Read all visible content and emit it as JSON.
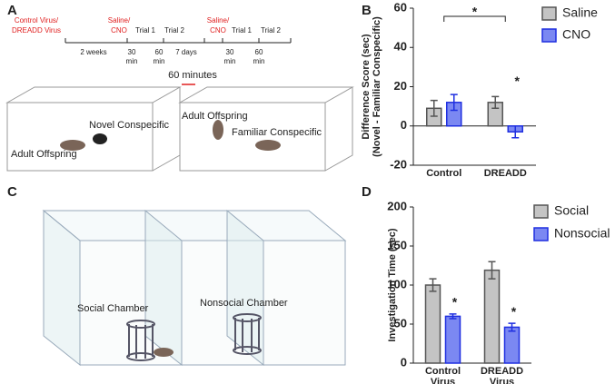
{
  "panel_a": {
    "label": "A",
    "group": [
      "Control Virus/",
      "DREADD Virus"
    ],
    "treatment_1": [
      "Saline/",
      "CNO"
    ],
    "treatment_2": [
      "Saline/",
      "CNO"
    ],
    "timeline_top": [
      "Trial 1",
      "Trial 2",
      "Trial 1",
      "Trial 2"
    ],
    "timeline_bottom": [
      "2 weeks",
      "30",
      "min",
      "60",
      "min",
      "7 days",
      "30",
      "min",
      "60",
      "min"
    ],
    "interval": "60 minutes",
    "scene_1": [
      "Novel Conspecific",
      "Adult Offspring"
    ],
    "scene_2": [
      "Adult Offspring",
      "Familiar Conspecific"
    ]
  },
  "panel_c": {
    "label": "C",
    "chambers": [
      "Social Chamber",
      "Nonsocial Chamber"
    ]
  },
  "chart_data": [
    {
      "type": "bar",
      "label": "B",
      "ylabel": [
        "Difference Score (sec)",
        "(Novel - Familiar Conspecific)"
      ],
      "categories": [
        [
          "Control"
        ],
        [
          "DREADD"
        ]
      ],
      "series": [
        {
          "name": "Saline",
          "color": "#c4c4c4",
          "values": [
            9,
            12
          ],
          "errors": [
            4,
            3
          ]
        },
        {
          "name": "CNO",
          "color": "#7b88f2",
          "values": [
            12,
            -3
          ],
          "errors": [
            4,
            3
          ]
        }
      ],
      "ylim": [
        -20,
        60
      ],
      "yticks": [
        -20,
        0,
        20,
        40,
        60
      ],
      "annotations": [
        "*",
        "*"
      ]
    },
    {
      "type": "bar",
      "label": "D",
      "ylabel": [
        "Investigation Time (sec)"
      ],
      "categories": [
        [
          "Control",
          "Virus"
        ],
        [
          "DREADD",
          "Virus"
        ]
      ],
      "series": [
        {
          "name": "Social",
          "color": "#c4c4c4",
          "values": [
            100,
            119
          ],
          "errors": [
            8,
            11
          ]
        },
        {
          "name": "Nonsocial",
          "color": "#7b88f2",
          "values": [
            60,
            46
          ],
          "errors": [
            3,
            5
          ]
        }
      ],
      "ylim": [
        0,
        200
      ],
      "yticks": [
        0,
        50,
        100,
        150,
        200
      ],
      "annotations": [
        "*",
        "*"
      ]
    }
  ]
}
